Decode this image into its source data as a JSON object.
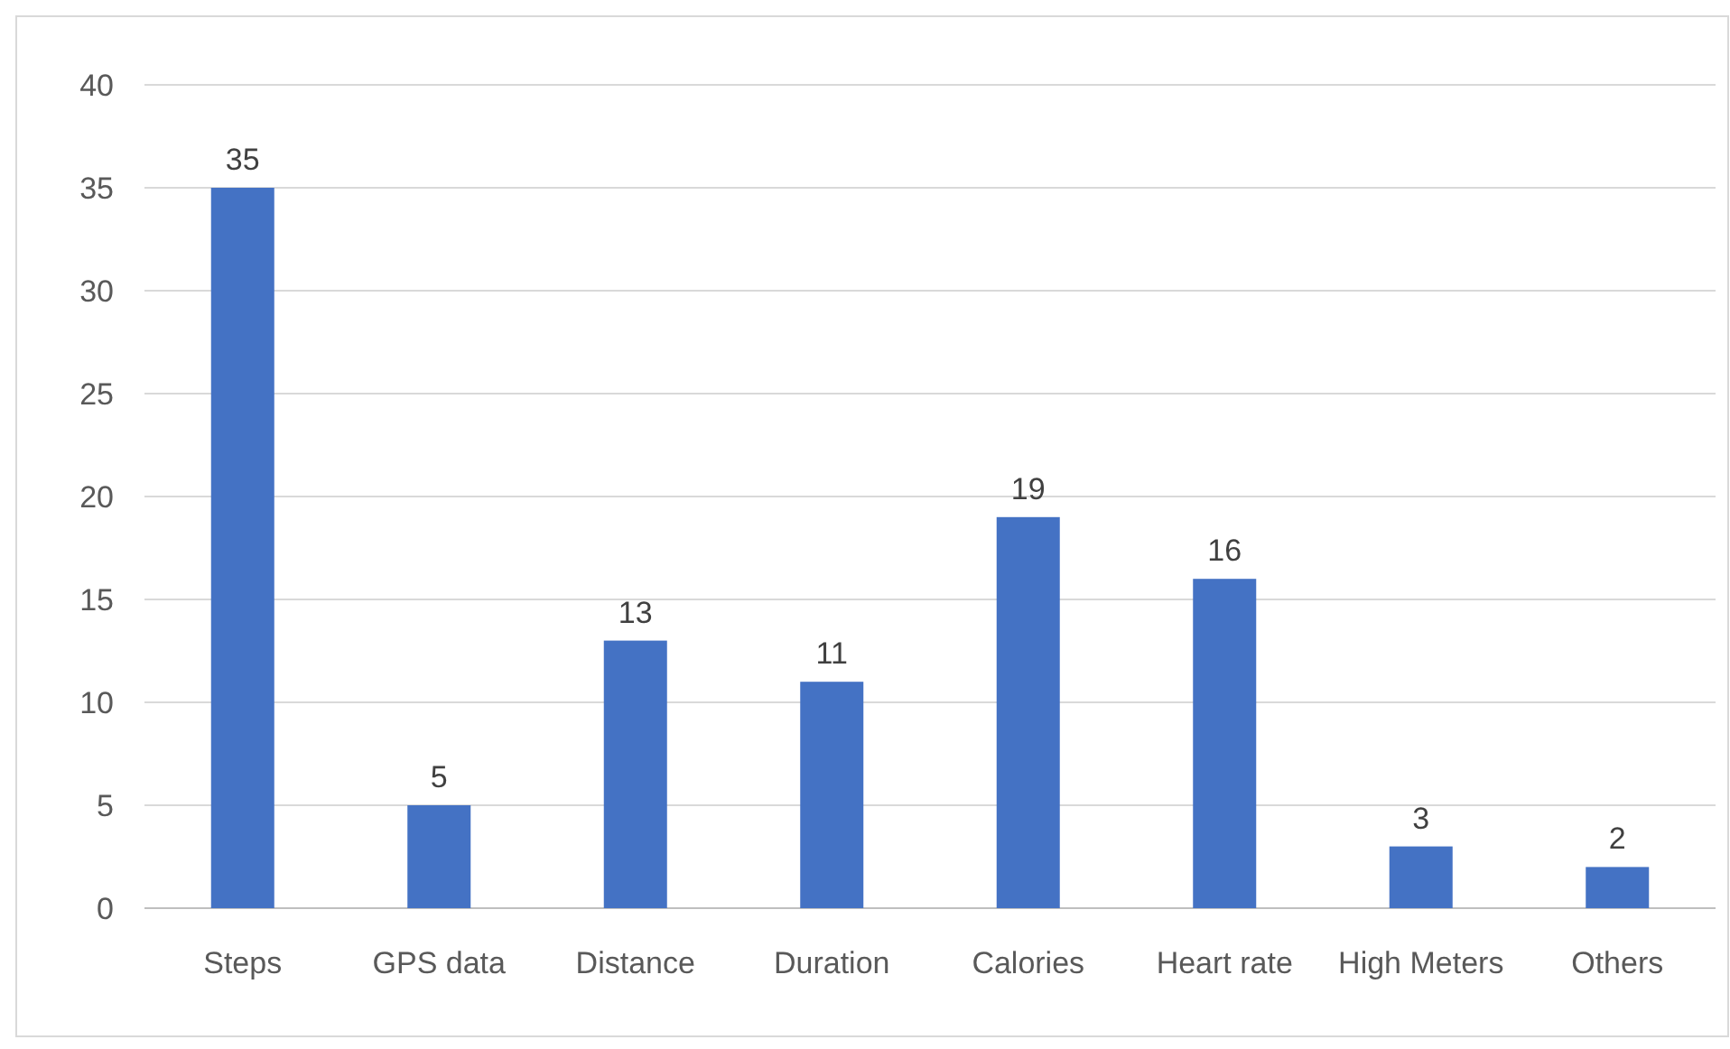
{
  "chart_data": {
    "type": "bar",
    "categories": [
      "Steps",
      "GPS data",
      "Distance",
      "Duration",
      "Calories",
      "Heart rate",
      "High Meters",
      "Others"
    ],
    "values": [
      35,
      5,
      13,
      11,
      19,
      16,
      3,
      2
    ],
    "color": "#4472c4",
    "ylim": [
      0,
      40
    ],
    "yticks": [
      0,
      5,
      10,
      15,
      20,
      25,
      30,
      35,
      40
    ],
    "grid": "y",
    "data_labels": true
  }
}
